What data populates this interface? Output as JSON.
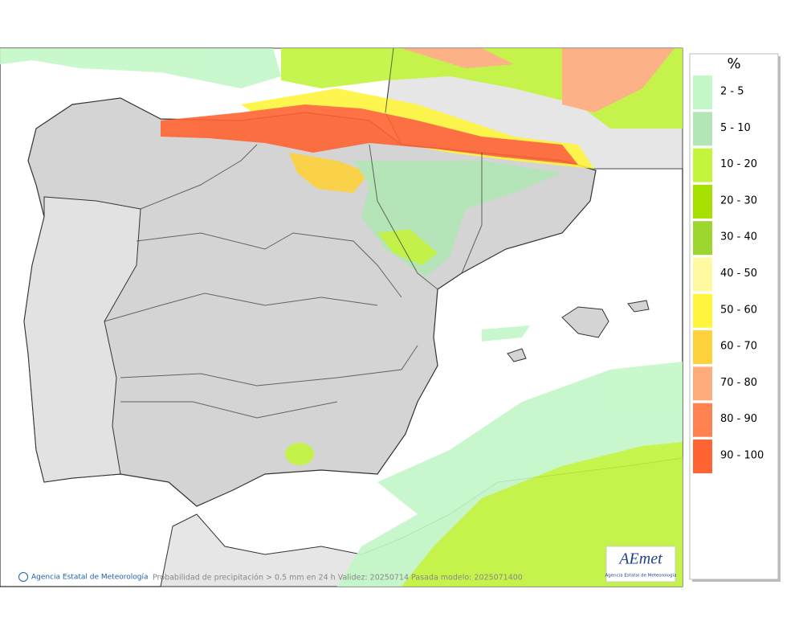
{
  "legend": {
    "title": "%",
    "items": [
      {
        "label": "2 - 5",
        "color": "#c3f7c8"
      },
      {
        "label": "5 - 10",
        "color": "#b2e6b6"
      },
      {
        "label": "10 - 20",
        "color": "#c2f53c"
      },
      {
        "label": "20 - 30",
        "color": "#a6e000"
      },
      {
        "label": "30 - 40",
        "color": "#9dd62e"
      },
      {
        "label": "40 - 50",
        "color": "#fffaa0"
      },
      {
        "label": "50 - 60",
        "color": "#fff53c"
      },
      {
        "label": "60 - 70",
        "color": "#ffd23c"
      },
      {
        "label": "70 - 80",
        "color": "#ffac7c"
      },
      {
        "label": "80 - 90",
        "color": "#ff8250"
      },
      {
        "label": "90 - 100",
        "color": "#ff6432"
      }
    ]
  },
  "footer": {
    "credit": "Agencia Estatal de Meteorología",
    "caption": "Probabilidad de precipitación > 0.5 mm en 24 h Validez: 20250714 Pasada modelo: 2025071400"
  },
  "logo": {
    "name": "AEmet",
    "subtitle": "Agencia Estatal de Meteorología"
  }
}
